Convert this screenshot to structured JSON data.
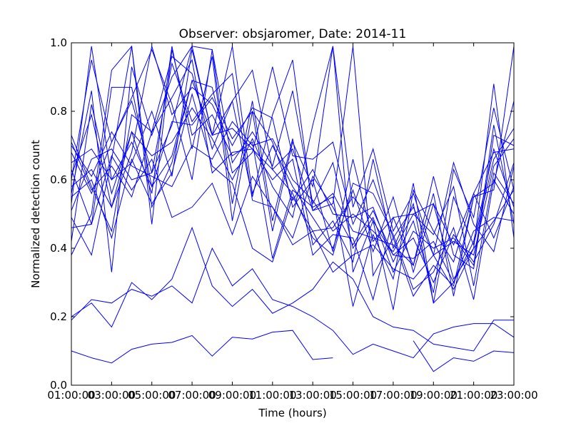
{
  "chart_data": {
    "type": "line",
    "title": "Observer: obsjaromer, Date: 2014-11",
    "xlabel": "Time (hours)",
    "ylabel": "Normalized detection count",
    "x": [
      "01:00:00",
      "02:00:00",
      "03:00:00",
      "04:00:00",
      "05:00:00",
      "06:00:00",
      "07:00:00",
      "08:00:00",
      "09:00:00",
      "10:00:00",
      "11:00:00",
      "12:00:00",
      "13:00:00",
      "14:00:00",
      "15:00:00",
      "16:00:00",
      "17:00:00",
      "18:00:00",
      "19:00:00",
      "20:00:00",
      "21:00:00",
      "22:00:00",
      "23:00:00"
    ],
    "xticks": [
      "01:00:00",
      "03:00:00",
      "05:00:00",
      "07:00:00",
      "09:00:00",
      "11:00:00",
      "13:00:00",
      "15:00:00",
      "17:00:00",
      "19:00:00",
      "21:00:00",
      "23:00:00"
    ],
    "xlim": [
      0,
      22
    ],
    "ylim": [
      0,
      1
    ],
    "yticks": [
      "0.0",
      "0.2",
      "0.4",
      "0.6",
      "0.8",
      "1.0"
    ],
    "line_color": "#0000ff",
    "grid": false,
    "series": [
      {
        "values": [
          0.1,
          0.08,
          0.065,
          0.105,
          0.12,
          0.125,
          0.145,
          0.085,
          0.14,
          0.135,
          0.155,
          0.16,
          0.075,
          0.08,
          null,
          null,
          null,
          0.13,
          0.04,
          0.08,
          0.07,
          0.1,
          0.095
        ]
      },
      {
        "values": [
          0.19,
          0.25,
          0.24,
          0.28,
          0.26,
          0.29,
          0.24,
          0.4,
          0.29,
          0.34,
          0.25,
          0.23,
          0.2,
          0.16,
          0.09,
          0.12,
          0.1,
          0.08,
          0.15,
          0.17,
          0.18,
          0.18,
          0.14
        ]
      },
      {
        "values": [
          0.2,
          0.24,
          0.17,
          0.3,
          0.25,
          0.31,
          0.46,
          0.29,
          0.23,
          0.28,
          0.21,
          0.24,
          0.28,
          0.36,
          0.31,
          0.2,
          0.17,
          0.16,
          0.12,
          0.11,
          0.1,
          0.19,
          0.19
        ]
      },
      {
        "values": [
          0.46,
          0.47,
          0.67,
          0.57,
          0.66,
          0.49,
          0.52,
          0.59,
          0.44,
          0.61,
          0.52,
          0.41,
          0.45,
          0.46,
          0.55,
          0.48,
          0.38,
          0.37,
          0.42,
          0.3,
          0.45,
          0.49,
          0.48
        ]
      },
      {
        "values": [
          0.55,
          0.6,
          0.43,
          0.66,
          0.53,
          0.62,
          0.85,
          0.64,
          0.59,
          0.4,
          0.36,
          0.55,
          0.45,
          0.33,
          0.38,
          0.41,
          0.34,
          0.31,
          0.38,
          0.28,
          0.4,
          0.48,
          0.57
        ]
      },
      {
        "values": [
          0.6,
          0.95,
          0.71,
          0.83,
          0.62,
          0.94,
          0.77,
          0.85,
          0.91,
          0.54,
          0.52,
          0.43,
          0.61,
          0.52,
          0.41,
          0.51,
          0.38,
          0.43,
          0.3,
          0.44,
          0.36,
          0.47,
          0.65
        ]
      },
      {
        "values": [
          0.49,
          0.38,
          0.66,
          0.99,
          0.47,
          0.98,
          0.73,
          0.79,
          0.67,
          0.71,
          0.37,
          0.57,
          0.52,
          0.55,
          0.23,
          0.44,
          0.31,
          0.59,
          0.24,
          0.3,
          0.42,
          0.69,
          0.52
        ]
      },
      {
        "values": [
          0.71,
          0.57,
          0.64,
          0.55,
          0.74,
          0.84,
          0.95,
          0.62,
          0.68,
          0.69,
          0.63,
          0.56,
          0.43,
          0.38,
          0.59,
          0.56,
          0.44,
          0.28,
          0.33,
          0.46,
          0.25,
          0.6,
          0.5
        ]
      },
      {
        "values": [
          0.63,
          0.47,
          0.87,
          0.87,
          0.58,
          0.67,
          0.89,
          0.73,
          0.75,
          0.69,
          0.6,
          0.66,
          0.38,
          0.44,
          0.43,
          0.25,
          0.49,
          0.35,
          0.61,
          0.38,
          0.34,
          0.73,
          0.7
        ]
      },
      {
        "values": [
          0.58,
          0.63,
          0.52,
          0.74,
          0.56,
          0.99,
          0.69,
          0.96,
          0.48,
          0.8,
          0.45,
          0.71,
          0.58,
          0.99,
          0.33,
          0.48,
          0.22,
          0.57,
          0.45,
          0.36,
          0.56,
          0.43,
          0.58
        ]
      },
      {
        "values": [
          0.53,
          0.99,
          0.6,
          0.65,
          0.8,
          0.61,
          0.98,
          0.73,
          0.99,
          0.56,
          0.7,
          0.58,
          0.49,
          0.4,
          0.57,
          0.39,
          0.55,
          0.33,
          0.53,
          0.31,
          0.4,
          0.88,
          0.43
        ]
      },
      {
        "values": [
          0.65,
          0.69,
          0.6,
          0.71,
          0.58,
          0.77,
          0.76,
          0.84,
          0.72,
          0.8,
          0.71,
          0.54,
          0.63,
          0.5,
          0.49,
          0.52,
          0.36,
          0.48,
          0.27,
          0.63,
          0.49,
          0.81,
          0.57
        ]
      },
      {
        "values": [
          0.68,
          0.56,
          0.71,
          0.84,
          0.98,
          0.82,
          0.6,
          0.98,
          0.65,
          0.74,
          0.64,
          0.86,
          0.53,
          0.65,
          0.4,
          0.49,
          0.33,
          0.45,
          0.4,
          0.43,
          0.35,
          0.76,
          0.47
        ]
      },
      {
        "values": [
          0.42,
          0.82,
          0.56,
          0.74,
          0.67,
          0.71,
          0.81,
          0.72,
          0.6,
          0.72,
          0.58,
          0.49,
          0.76,
          0.99,
          0.52,
          0.69,
          0.45,
          0.56,
          0.38,
          0.42,
          0.38,
          0.64,
          0.72
        ]
      },
      {
        "values": [
          0.73,
          0.58,
          0.45,
          0.79,
          0.74,
          0.96,
          0.91,
          0.69,
          0.83,
          0.92,
          0.63,
          0.69,
          0.51,
          0.56,
          0.45,
          0.43,
          0.41,
          0.35,
          0.56,
          0.26,
          0.55,
          0.59,
          0.83
        ]
      },
      {
        "values": [
          0.61,
          0.79,
          0.52,
          0.68,
          0.99,
          0.79,
          0.87,
          0.82,
          0.7,
          0.81,
          0.78,
          0.52,
          0.6,
          0.39,
          0.66,
          0.42,
          0.49,
          0.5,
          0.44,
          0.58,
          0.29,
          0.62,
          0.53
        ]
      },
      {
        "values": [
          0.56,
          0.86,
          0.33,
          0.93,
          0.73,
          0.9,
          0.99,
          0.73,
          0.83,
          0.55,
          0.79,
          0.95,
          0.51,
          0.53,
          0.99,
          0.32,
          0.43,
          0.26,
          0.35,
          0.29,
          0.55,
          0.57,
          0.99
        ]
      },
      {
        "values": [
          0.38,
          0.5,
          0.92,
          0.99,
          0.52,
          0.65,
          0.89,
          0.87,
          0.62,
          0.68,
          0.93,
          0.67,
          0.66,
          0.71,
          0.47,
          0.6,
          0.43,
          0.52,
          0.38,
          0.65,
          0.47,
          0.39,
          0.64
        ]
      },
      {
        "values": [
          0.51,
          0.66,
          0.69,
          0.6,
          0.62,
          0.76,
          0.99,
          0.98,
          0.53,
          0.83,
          0.48,
          0.72,
          0.41,
          0.48,
          0.36,
          0.66,
          0.4,
          0.53,
          0.24,
          0.55,
          0.41,
          0.66,
          0.75
        ]
      },
      {
        "values": [
          0.7,
          0.61,
          0.74,
          0.64,
          0.61,
          0.58,
          0.7,
          0.66,
          0.77,
          0.7,
          0.72,
          0.6,
          0.54,
          0.45,
          0.5,
          0.45,
          0.39,
          0.5,
          0.53,
          0.41,
          0.56,
          0.68,
          0.69
        ]
      }
    ]
  }
}
